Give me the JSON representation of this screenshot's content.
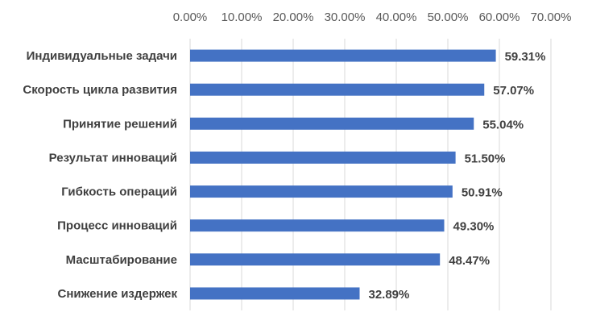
{
  "chart_data": {
    "type": "bar",
    "orientation": "horizontal",
    "categories": [
      "Индивидуальные задачи",
      "Скорость цикла развития",
      "Принятие решений",
      "Результат инноваций",
      "Гибкость операций",
      "Процесс инноваций",
      "Масштабирование",
      "Снижение издержек"
    ],
    "values": [
      59.31,
      57.07,
      55.04,
      51.5,
      50.91,
      49.3,
      48.47,
      32.89
    ],
    "value_labels": [
      "59.31%",
      "57.07%",
      "55.04%",
      "51.50%",
      "50.91%",
      "49.30%",
      "48.47%",
      "32.89%"
    ],
    "color": "#4472c4",
    "xlim": [
      0,
      70
    ],
    "xticks": [
      {
        "value": 0,
        "label": "0.00%"
      },
      {
        "value": 10,
        "label": "10.00%"
      },
      {
        "value": 20,
        "label": "20.00%"
      },
      {
        "value": 30,
        "label": "30.00%"
      },
      {
        "value": 40,
        "label": "40.00%"
      },
      {
        "value": 50,
        "label": "50.00%"
      },
      {
        "value": 60,
        "label": "60.00%"
      },
      {
        "value": 70,
        "label": "70.00%"
      }
    ],
    "grid": true
  }
}
